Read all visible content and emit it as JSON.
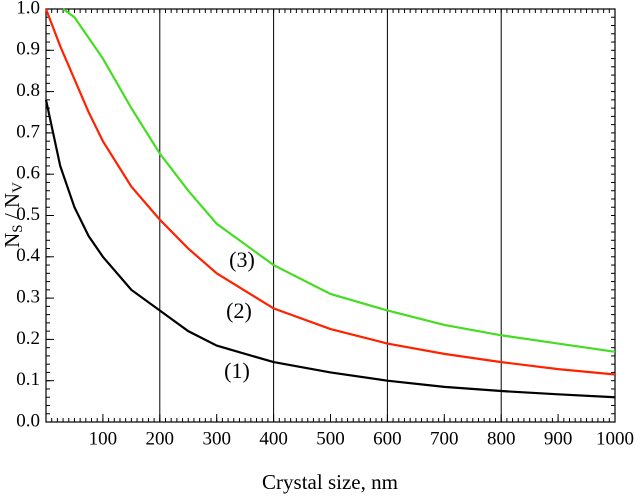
{
  "chart_data": {
    "type": "line",
    "xlabel": "Crystal size, nm",
    "ylabel": [
      "N",
      "S",
      " / N",
      "V"
    ],
    "xlim": [
      0,
      1000
    ],
    "ylim": [
      0,
      1
    ],
    "xticks": [
      100,
      200,
      300,
      400,
      500,
      600,
      700,
      800,
      900,
      1000
    ],
    "yticks": [
      {
        "value": 0,
        "label": "0.0"
      },
      0.1,
      0.2,
      0.3,
      0.4,
      0.5,
      0.6,
      0.7,
      0.8,
      0.9,
      {
        "value": 1,
        "label": "1.0"
      }
    ],
    "xgrid": [
      200,
      400,
      600,
      800
    ],
    "series": [
      {
        "name": "(1)",
        "color": "#000000",
        "x": [
          0,
          25,
          50,
          75,
          100,
          150,
          200,
          250,
          300,
          400,
          500,
          600,
          700,
          800,
          900,
          1000
        ],
        "values": [
          0.78,
          0.62,
          0.52,
          0.45,
          0.4,
          0.32,
          0.27,
          0.22,
          0.185,
          0.145,
          0.12,
          0.1,
          0.085,
          0.075,
          0.067,
          0.06
        ]
      },
      {
        "name": "(2)",
        "color": "#ff2200",
        "x": [
          0,
          25,
          50,
          75,
          100,
          150,
          200,
          250,
          300,
          400,
          500,
          600,
          700,
          800,
          900,
          1000
        ],
        "values": [
          1.0,
          0.91,
          0.83,
          0.75,
          0.68,
          0.57,
          0.49,
          0.42,
          0.36,
          0.275,
          0.225,
          0.19,
          0.165,
          0.145,
          0.128,
          0.115
        ]
      },
      {
        "name": "(3)",
        "color": "#44dd22",
        "x": [
          30,
          50,
          75,
          100,
          150,
          200,
          250,
          300,
          400,
          500,
          600,
          700,
          800,
          900,
          1000
        ],
        "values": [
          1.0,
          0.98,
          0.93,
          0.88,
          0.76,
          0.65,
          0.56,
          0.48,
          0.38,
          0.31,
          0.27,
          0.235,
          0.21,
          0.19,
          0.17
        ]
      }
    ]
  }
}
